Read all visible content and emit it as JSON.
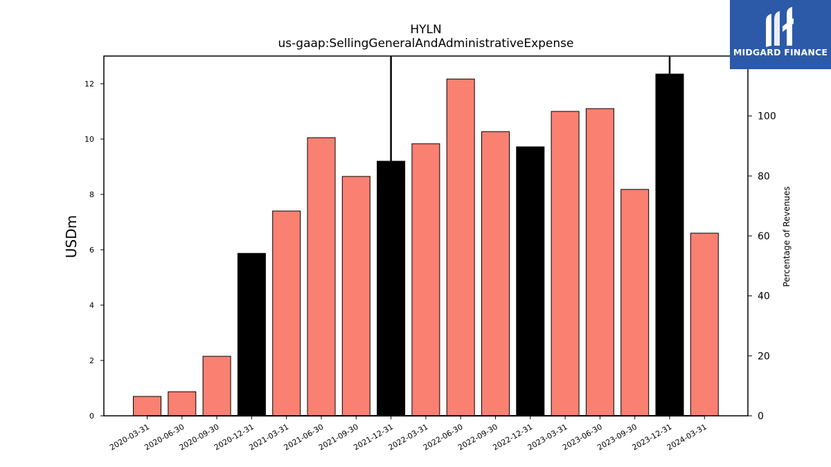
{
  "brand": {
    "name": "MIDGARD FINANCE",
    "color": "#2c5aa8"
  },
  "chart_data": {
    "type": "bar",
    "title": "HYLN",
    "subtitle": "us-gaap:SellingGeneralAndAdministrativeExpense",
    "ylabel": "USDm",
    "y2label": "Percentage of Revenues",
    "ylim": [
      0,
      13
    ],
    "y2lim": [
      0,
      120
    ],
    "yticks": [
      0,
      2,
      4,
      6,
      8,
      10,
      12
    ],
    "y2ticks": [
      0,
      20,
      40,
      60,
      80,
      100
    ],
    "grid": false,
    "categories": [
      "2020-03-31",
      "2020-06-30",
      "2020-09-30",
      "2020-12-31",
      "2021-03-31",
      "2021-06-30",
      "2021-09-30",
      "2021-12-31",
      "2022-03-31",
      "2022-06-30",
      "2022-09-30",
      "2022-12-31",
      "2023-03-31",
      "2023-06-30",
      "2023-09-30",
      "2023-12-31",
      "2024-03-31"
    ],
    "series": [
      {
        "values": [
          0.7,
          0.87,
          2.15,
          5.87,
          7.4,
          10.05,
          8.65,
          9.2,
          9.83,
          12.17,
          10.27,
          9.72,
          11.0,
          11.1,
          8.18,
          12.35,
          6.6
        ]
      }
    ],
    "bar_colors": [
      "#fa8072",
      "#fa8072",
      "#fa8072",
      "#000000",
      "#fa8072",
      "#fa8072",
      "#fa8072",
      "#000000",
      "#fa8072",
      "#fa8072",
      "#fa8072",
      "#000000",
      "#fa8072",
      "#fa8072",
      "#fa8072",
      "#000000",
      "#fa8072"
    ],
    "percentage_of_revenues": [
      0,
      0,
      0,
      0,
      0,
      0,
      0,
      0,
      0,
      0,
      0,
      0,
      0,
      0,
      0,
      0,
      0
    ],
    "percentage_spikes": [
      {
        "category": "2021-12-31",
        "value_min": 85,
        "value_max": 120
      },
      {
        "category": "2023-12-31",
        "value_min": 114,
        "value_max": 120
      }
    ]
  }
}
